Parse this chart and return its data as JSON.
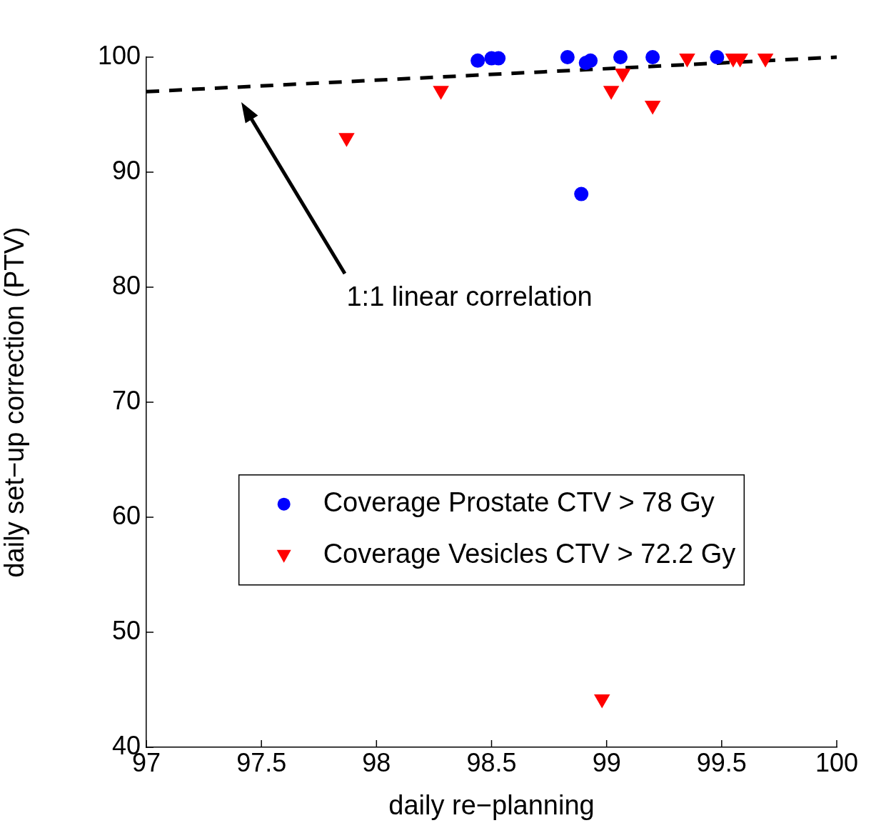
{
  "chart_data": {
    "type": "scatter",
    "xlabel": "daily re−planning",
    "ylabel": "daily set−up correction (PTV)",
    "xlim": [
      97,
      100
    ],
    "xticks": [
      97,
      97.5,
      98,
      98.5,
      99,
      99.5,
      100
    ],
    "ylim": [
      40,
      100
    ],
    "yticks": [
      40,
      50,
      60,
      70,
      80,
      90,
      100
    ],
    "grid": false,
    "legend": "bottom",
    "annotations": [
      "1:1 linear correlation"
    ],
    "series": [
      {
        "name": "Coverage Prostate CTV > 78 Gy",
        "type": "scatter",
        "marker": "circle",
        "color": "#0000ff",
        "x": [
          98.44,
          98.5,
          98.53,
          98.83,
          98.91,
          98.93,
          99.06,
          99.2,
          99.48,
          98.89
        ],
        "values": [
          99.7,
          99.9,
          99.9,
          100,
          99.5,
          99.7,
          100,
          100,
          100,
          88.1
        ]
      },
      {
        "name": "Coverage Vesicles CTV > 72.2 Gy",
        "type": "scatter",
        "marker": "triangle",
        "color": "#ff0000",
        "x": [
          97.87,
          98.28,
          99.02,
          99.07,
          99.2,
          99.35,
          99.55,
          99.58,
          99.69,
          98.98
        ],
        "values": [
          93.0,
          97.1,
          97.1,
          98.6,
          95.8,
          99.9,
          99.9,
          99.9,
          99.9,
          44.2
        ]
      },
      {
        "type": "line",
        "marker": "none",
        "line_style": "dashed",
        "color": "#000000",
        "x": [
          97,
          100
        ],
        "values": [
          97,
          100
        ]
      }
    ]
  }
}
